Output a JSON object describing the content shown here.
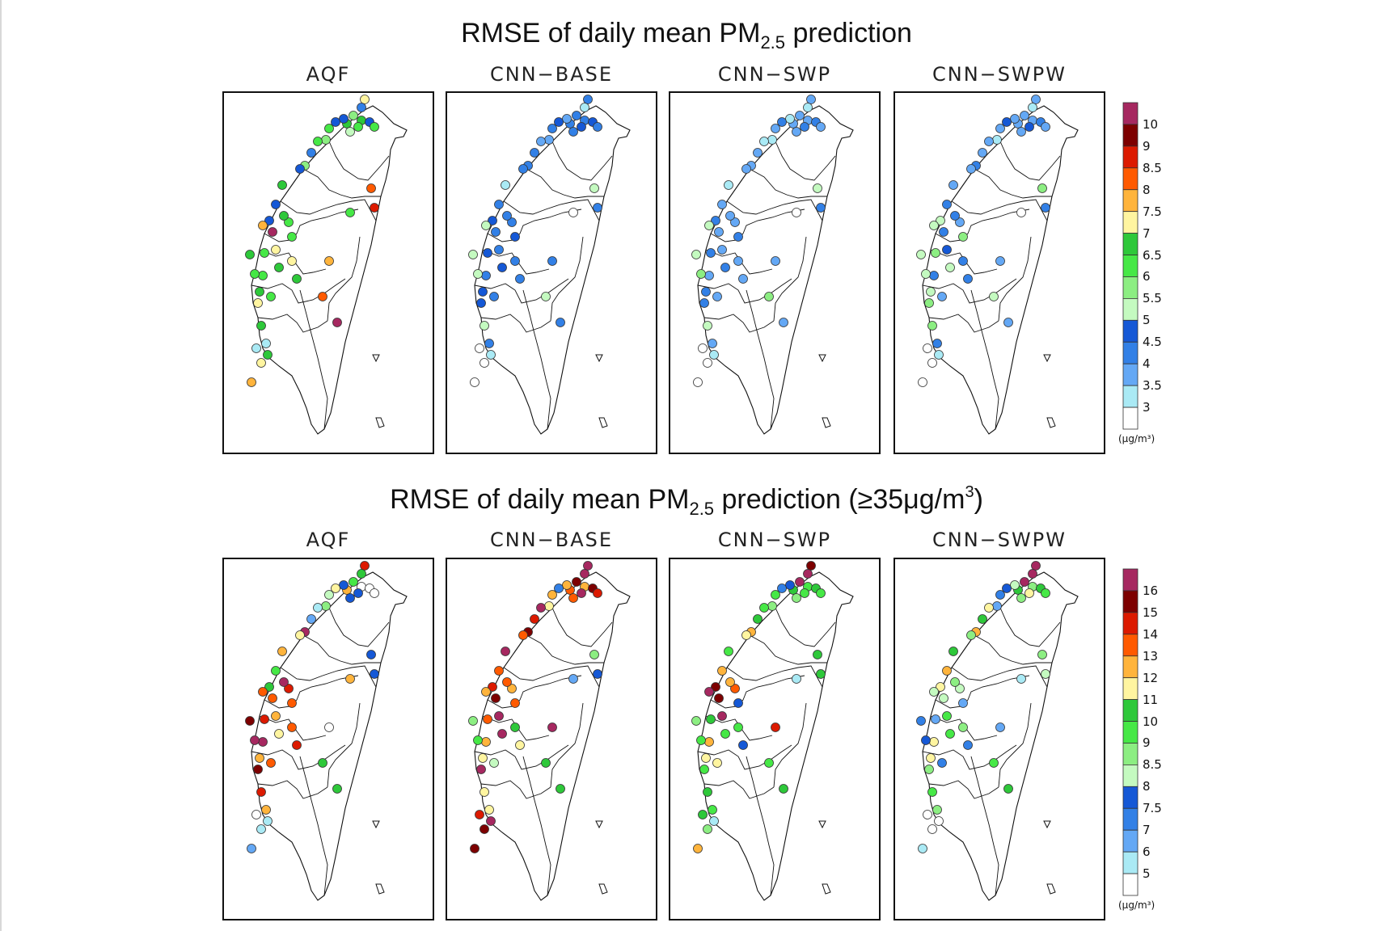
{
  "chart_data": [
    {
      "type": "map-scatter",
      "title_pre": "RMSE of daily mean PM",
      "title_sub": "2.5",
      "title_post": " prediction",
      "title_tail": "",
      "title_sup": "",
      "title_end": "",
      "panels": [
        "AQF",
        "CNN−BASE",
        "CNN−SWP",
        "CNN−SWPW"
      ],
      "colorbar": {
        "unit": "(μg/m³)",
        "labels": [
          "10",
          "9",
          "8.5",
          "8",
          "7.5",
          "7",
          "6.5",
          "6",
          "5.5",
          "5",
          "4.5",
          "4",
          "3.5",
          "3"
        ],
        "colors": [
          "#a62860",
          "#7d0000",
          "#dc1a00",
          "#ff5a00",
          "#ffb43c",
          "#fff5a0",
          "#2ec83a",
          "#46e846",
          "#8cee82",
          "#c4fac0",
          "#1558d6",
          "#3280e6",
          "#64a8f5",
          "#aaeaf5",
          "#ffffff"
        ]
      },
      "stations_level_index": [
        [
          5,
          11,
          8,
          6,
          6,
          10,
          7,
          7,
          9,
          10,
          10,
          7,
          8,
          7,
          11,
          8,
          10,
          6,
          10,
          10,
          4,
          0,
          5,
          6,
          7,
          7,
          6,
          5,
          7,
          7,
          6,
          7,
          5,
          6,
          6,
          7,
          6,
          13,
          13,
          5,
          6,
          4,
          4,
          0,
          3,
          3,
          2,
          7
        ],
        [
          11,
          13,
          11,
          11,
          11,
          10,
          11,
          10,
          11,
          12,
          10,
          11,
          12,
          12,
          11,
          11,
          11,
          13,
          11,
          10,
          9,
          11,
          11,
          10,
          10,
          11,
          10,
          10,
          11,
          11,
          11,
          10,
          11,
          11,
          9,
          9,
          9,
          11,
          14,
          14,
          13,
          14,
          11,
          11,
          9,
          9,
          11,
          14
        ],
        [
          12,
          13,
          12,
          12,
          12,
          11,
          12,
          11,
          12,
          13,
          11,
          12,
          13,
          13,
          12,
          12,
          12,
          13,
          12,
          11,
          9,
          12,
          12,
          11,
          11,
          12,
          11,
          11,
          12,
          12,
          12,
          11,
          12,
          12,
          9,
          8,
          9,
          12,
          14,
          14,
          13,
          14,
          12,
          12,
          8,
          9,
          11,
          14
        ],
        [
          12,
          13,
          12,
          12,
          12,
          11,
          12,
          10,
          12,
          12,
          10,
          12,
          13,
          12,
          12,
          11,
          12,
          12,
          11,
          9,
          9,
          11,
          10,
          9,
          8,
          11,
          9,
          8,
          12,
          12,
          11,
          8,
          11,
          11,
          9,
          9,
          8,
          11,
          14,
          14,
          13,
          14,
          12,
          12,
          9,
          8,
          11,
          14
        ]
      ]
    },
    {
      "type": "map-scatter",
      "title_pre": "RMSE of daily mean PM",
      "title_sub": "2.5",
      "title_post": " prediction (≥35μg/m",
      "title_sup": "3",
      "title_end": ")",
      "panels": [
        "AQF",
        "CNN−BASE",
        "CNN−SWP",
        "CNN−SWPW"
      ],
      "colorbar": {
        "unit": "(μg/m³)",
        "labels": [
          "16",
          "15",
          "14",
          "13",
          "12",
          "11",
          "10",
          "9",
          "8.5",
          "8",
          "7.5",
          "7",
          "6",
          "5"
        ],
        "colors": [
          "#a62860",
          "#7d0000",
          "#dc1a00",
          "#ff5a00",
          "#ffb43c",
          "#fff5a0",
          "#2ec83a",
          "#46e846",
          "#8cee82",
          "#c4fac0",
          "#1558d6",
          "#3280e6",
          "#64a8f5",
          "#aaeaf5",
          "#ffffff"
        ]
      },
      "stations_level_index": [
        [
          2,
          6,
          7,
          4,
          14,
          14,
          14,
          10,
          10,
          10,
          5,
          9,
          8,
          13,
          12,
          0,
          5,
          4,
          7,
          6,
          3,
          3,
          4,
          5,
          2,
          0,
          4,
          1,
          3,
          2,
          0,
          3,
          3,
          2,
          1,
          0,
          2,
          4,
          14,
          13,
          13,
          12,
          14,
          6,
          6,
          10,
          10,
          4
        ],
        [
          0,
          0,
          1,
          3,
          4,
          1,
          2,
          0,
          3,
          4,
          11,
          4,
          5,
          0,
          2,
          1,
          3,
          0,
          3,
          2,
          4,
          1,
          0,
          0,
          3,
          4,
          5,
          0,
          9,
          4,
          3,
          3,
          6,
          5,
          8,
          7,
          5,
          5,
          2,
          1,
          0,
          1,
          0,
          6,
          6,
          8,
          10,
          12
        ],
        [
          1,
          0,
          0,
          6,
          7,
          6,
          7,
          7,
          8,
          10,
          11,
          7,
          8,
          7,
          6,
          4,
          5,
          7,
          4,
          1,
          0,
          1,
          0,
          7,
          6,
          4,
          5,
          7,
          5,
          3,
          4,
          10,
          7,
          10,
          8,
          7,
          6,
          7,
          6,
          8,
          13,
          4,
          2,
          6,
          7,
          6,
          6,
          13
        ],
        [
          0,
          0,
          0,
          6,
          8,
          6,
          7,
          5,
          8,
          9,
          10,
          11,
          12,
          5,
          6,
          4,
          8,
          6,
          4,
          5,
          9,
          9,
          7,
          7,
          12,
          5,
          5,
          8,
          11,
          9,
          8,
          12,
          8,
          11,
          11,
          10,
          7,
          8,
          14,
          14,
          14,
          13,
          12,
          6,
          7,
          8,
          9,
          13
        ]
      ]
    }
  ]
}
